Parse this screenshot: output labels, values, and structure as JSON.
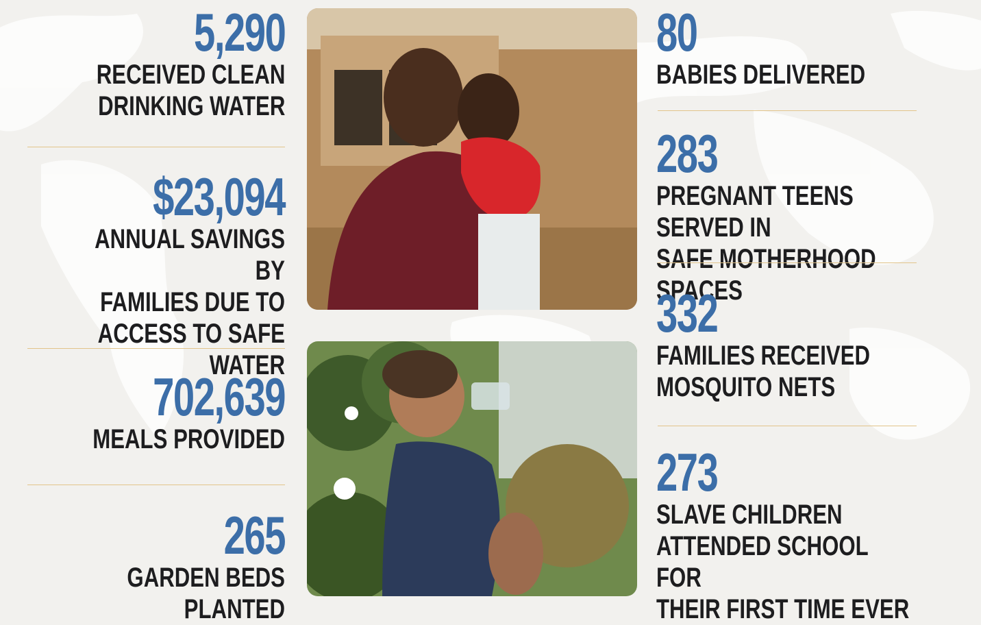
{
  "left_stats": [
    {
      "number": "5,290",
      "label": "RECEIVED CLEAN\nDRINKING WATER"
    },
    {
      "number": "$23,094",
      "label": "ANNUAL SAVINGS BY\nFAMILIES DUE TO\nACCESS TO SAFE WATER"
    },
    {
      "number": "702,639",
      "label": "MEALS PROVIDED"
    },
    {
      "number": "265",
      "label": "GARDEN BEDS PLANTED"
    }
  ],
  "right_stats": [
    {
      "number": "80",
      "label": "BABIES DELIVERED"
    },
    {
      "number": "283",
      "label": "PREGNANT TEENS SERVED IN\nSAFE MOTHERHOOD SPACES"
    },
    {
      "number": "332",
      "label": "FAMILIES RECEIVED\nMOSQUITO NETS"
    },
    {
      "number": "273",
      "label": "SLAVE CHILDREN\nATTENDED SCHOOL FOR\nTHEIR FIRST TIME EVER"
    }
  ],
  "colors": {
    "number": "#3c6ea8",
    "label": "#1d1d1f",
    "divider": "#e2c48a",
    "background": "#f2f1ee"
  },
  "photos": [
    {
      "name": "mother-holding-baby-photo"
    },
    {
      "name": "boy-drinking-water-photo"
    }
  ]
}
